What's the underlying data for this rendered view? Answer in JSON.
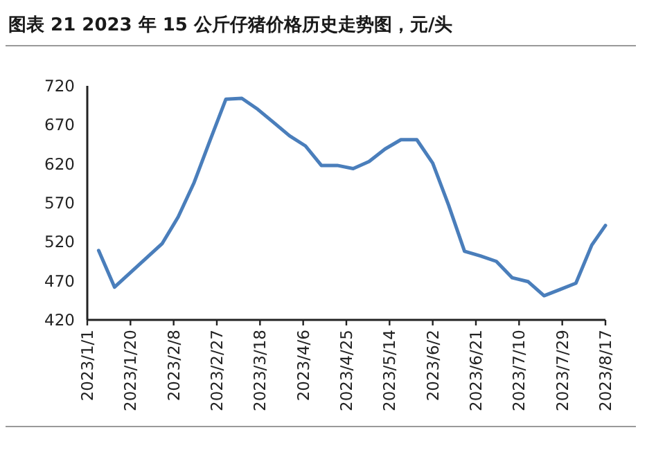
{
  "chart_data": {
    "type": "line",
    "title": "图表 21 2023 年 15 公斤仔猪价格历史走势图，元/头",
    "x": [
      "2023-01-06",
      "2023-01-13",
      "2023-02-03",
      "2023-02-10",
      "2023-02-17",
      "2023-02-24",
      "2023-03-03",
      "2023-03-10",
      "2023-03-17",
      "2023-03-24",
      "2023-03-31",
      "2023-04-07",
      "2023-04-14",
      "2023-04-21",
      "2023-04-28",
      "2023-05-05",
      "2023-05-12",
      "2023-05-19",
      "2023-05-26",
      "2023-06-02",
      "2023-06-09",
      "2023-06-16",
      "2023-06-23",
      "2023-06-30",
      "2023-07-07",
      "2023-07-14",
      "2023-07-21",
      "2023-07-28",
      "2023-08-04",
      "2023-08-11",
      "2023-08-17"
    ],
    "series": [
      {
        "color": "#4a7ebb",
        "values": [
          509,
          462,
          518,
          552,
          596,
          650,
          703,
          704,
          690,
          673,
          656,
          643,
          618,
          618,
          614,
          623,
          639,
          651,
          651,
          621,
          567,
          508,
          502,
          495,
          474,
          469,
          451,
          459,
          467,
          516,
          541
        ]
      }
    ],
    "xlim": [
      "2023-01-01",
      "2023-08-17"
    ],
    "xticks": [
      {
        "value": "2023-01-01",
        "label": "2023/1/1"
      },
      {
        "value": "2023-01-20",
        "label": "2023/1/20"
      },
      {
        "value": "2023-02-08",
        "label": "2023/2/8"
      },
      {
        "value": "2023-02-27",
        "label": "2023/2/27"
      },
      {
        "value": "2023-03-18",
        "label": "2023/3/18"
      },
      {
        "value": "2023-04-06",
        "label": "2023/4/6"
      },
      {
        "value": "2023-04-25",
        "label": "2023/4/25"
      },
      {
        "value": "2023-05-14",
        "label": "2023/5/14"
      },
      {
        "value": "2023-06-02",
        "label": "2023/6/2"
      },
      {
        "value": "2023-06-21",
        "label": "2023/6/21"
      },
      {
        "value": "2023-07-10",
        "label": "2023/7/10"
      },
      {
        "value": "2023-07-29",
        "label": "2023/7/29"
      },
      {
        "value": "2023-08-17",
        "label": "2023/8/17"
      }
    ],
    "ylim": [
      420,
      720
    ],
    "yticks": [
      420,
      470,
      520,
      570,
      620,
      670,
      720
    ],
    "grid": false,
    "marker": "none",
    "line_style": "solid"
  }
}
